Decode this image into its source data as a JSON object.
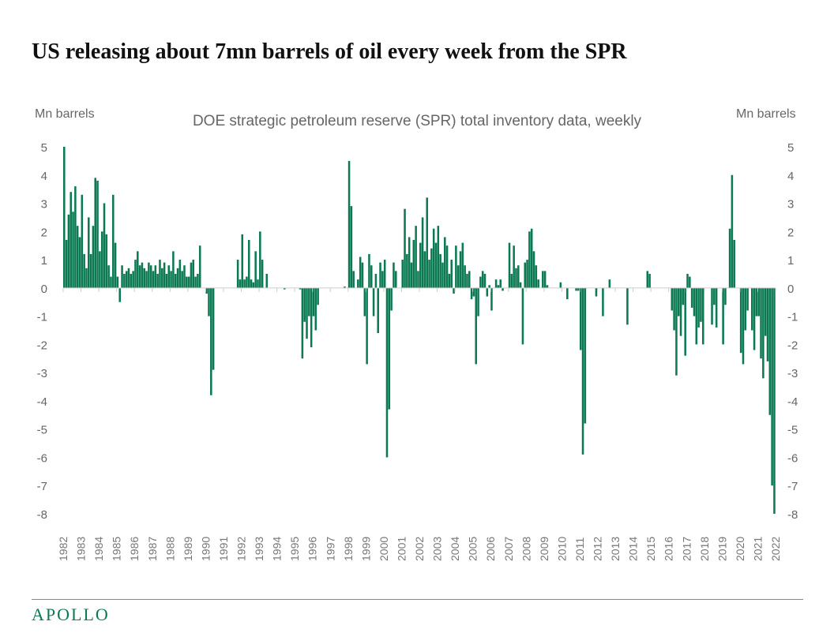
{
  "title": "US releasing about 7mn barrels of oil every week from the SPR",
  "logo_text": "APOLLO",
  "chart_data": {
    "type": "bar",
    "title": "DOE strategic petroleum reserve (SPR) total inventory data, weekly",
    "ylabel_left": "Mn barrels",
    "ylabel_right": "Mn barrels",
    "ylim": [
      -8,
      5
    ],
    "yticks": [
      5,
      4,
      3,
      2,
      1,
      0,
      -1,
      -2,
      -3,
      -4,
      -5,
      -6,
      -7,
      -8
    ],
    "xlim": [
      1982,
      2022
    ],
    "xticks": [
      "1982",
      "1983",
      "1984",
      "1985",
      "1986",
      "1987",
      "1988",
      "1989",
      "1990",
      "1991",
      "1992",
      "1993",
      "1994",
      "1995",
      "1996",
      "1997",
      "1998",
      "1999",
      "2000",
      "2001",
      "2002",
      "2003",
      "2004",
      "2005",
      "2006",
      "2007",
      "2008",
      "2009",
      "2010",
      "2011",
      "2012",
      "2013",
      "2014",
      "2015",
      "2016",
      "2017",
      "2018",
      "2019",
      "2020",
      "2021",
      "2022"
    ],
    "grid": false,
    "bar_color": "#0b7a53",
    "values_by_year": {
      "1982": [
        5.0,
        1.7,
        2.6,
        3.4,
        2.7,
        3.6,
        2.2,
        1.8
      ],
      "1983": [
        3.3,
        1.2,
        0.7,
        2.5,
        1.2,
        2.2,
        3.9,
        3.8
      ],
      "1984": [
        1.3,
        2.0,
        3.0,
        1.9,
        0.8,
        0.4,
        3.3,
        1.6
      ],
      "1985": [
        0.4,
        -0.5,
        0.8,
        0.5,
        0.6,
        0.7,
        0.5,
        0.6
      ],
      "1986": [
        1.0,
        1.3,
        0.8,
        0.9,
        0.7,
        0.6,
        0.9,
        0.8
      ],
      "1987": [
        0.6,
        0.8,
        0.5,
        1.0,
        0.7,
        0.9,
        0.5,
        0.8
      ],
      "1988": [
        0.6,
        1.3,
        0.5,
        0.7,
        1.0,
        0.6,
        0.8,
        0.4
      ],
      "1989": [
        0.4,
        0.9,
        1.0,
        0.4,
        0.5,
        1.5,
        0.0,
        0.0
      ],
      "1990": [
        -0.2,
        -1.0,
        -3.8,
        -2.9,
        0,
        0,
        0,
        0
      ],
      "1991": [
        0,
        0,
        0,
        0,
        0,
        0,
        1.0,
        0.3
      ],
      "1992": [
        1.9,
        0.3,
        0.4,
        1.7,
        0.3,
        0.2,
        1.3,
        0.3
      ],
      "1993": [
        2.0,
        1.0,
        0,
        0.5,
        0,
        0,
        0,
        0
      ],
      "1994": [
        0,
        0,
        0,
        -0.05,
        0,
        0,
        0,
        0
      ],
      "1995": [
        0,
        0,
        -0.05,
        -2.5,
        -1.2,
        -1.8,
        -1.0,
        -2.1
      ],
      "1996": [
        -1.0,
        -1.5,
        -0.6,
        0,
        0,
        0,
        0,
        0
      ],
      "1997": [
        0,
        0,
        0,
        0,
        0,
        0,
        0.05,
        0
      ],
      "1998": [
        4.5,
        2.9,
        0.6,
        0,
        0.3,
        1.1,
        0.9,
        -1.0
      ],
      "1999": [
        -2.7,
        1.2,
        0.8,
        -1.0,
        0.5,
        -1.6,
        0.9,
        0.6
      ],
      "2000": [
        1.0,
        -6.0,
        -4.3,
        -0.8,
        0.9,
        0.6,
        0,
        0
      ],
      "2001": [
        1.0,
        2.8,
        1.2,
        1.8,
        0.9,
        1.7,
        2.2,
        0.6
      ],
      "2002": [
        1.6,
        2.5,
        1.3,
        3.2,
        1.0,
        1.4,
        2.1,
        1.6
      ],
      "2003": [
        2.2,
        1.2,
        0.9,
        1.8,
        1.5,
        0.5,
        1.0,
        -0.2
      ],
      "2004": [
        1.5,
        0.8,
        1.3,
        1.6,
        0.8,
        0.5,
        0.6,
        -0.4
      ],
      "2005": [
        -0.3,
        -2.7,
        -1.0,
        0.4,
        0.6,
        0.5,
        -0.3,
        0.1
      ],
      "2006": [
        -0.8,
        0,
        0.3,
        0.1,
        0.3,
        -0.1,
        0,
        0
      ],
      "2007": [
        1.6,
        0.5,
        1.5,
        0.7,
        0.8,
        0.2,
        -2.0,
        0.9
      ],
      "2008": [
        1.0,
        2.0,
        2.1,
        1.3,
        0.8,
        0.3,
        0,
        0.6
      ],
      "2009": [
        0.6,
        0.1,
        0,
        0,
        0,
        0,
        0,
        0.2
      ],
      "2010": [
        0,
        0,
        -0.4,
        0,
        0,
        0,
        -0.1,
        -0.1
      ],
      "2011": [
        -2.2,
        -5.9,
        -4.8,
        0,
        0,
        0,
        0,
        -0.3
      ],
      "2012": [
        0,
        0,
        -1.0,
        0,
        0,
        0.3,
        0,
        0
      ],
      "2013": [
        0,
        0,
        0,
        0,
        0,
        -1.3,
        0,
        0
      ],
      "2014": [
        0,
        0,
        0,
        0,
        0,
        0,
        0.6,
        0.5
      ],
      "2015": [
        0,
        0,
        0,
        0,
        0,
        0,
        0,
        0
      ],
      "2016": [
        0,
        -0.8,
        -1.5,
        -3.1,
        -1.0,
        -1.7,
        -0.6,
        -2.4
      ],
      "2017": [
        0.5,
        0.4,
        -0.7,
        -1.0,
        -2.0,
        -1.4,
        -1.2,
        -2.0
      ],
      "2018": [
        0,
        0,
        0,
        -1.3,
        -0.6,
        -1.4,
        0,
        0
      ],
      "2019": [
        -2.0,
        -0.6,
        0,
        2.1,
        4.0,
        1.7,
        0,
        0
      ],
      "2020": [
        -2.3,
        -2.7,
        -1.5,
        -0.8,
        0,
        -1.5,
        -2.2,
        -1.0
      ],
      "2021": [
        -1.0,
        -2.5,
        -3.2,
        -1.7,
        -2.6,
        -4.5,
        -7.0,
        -8.0
      ]
    }
  }
}
